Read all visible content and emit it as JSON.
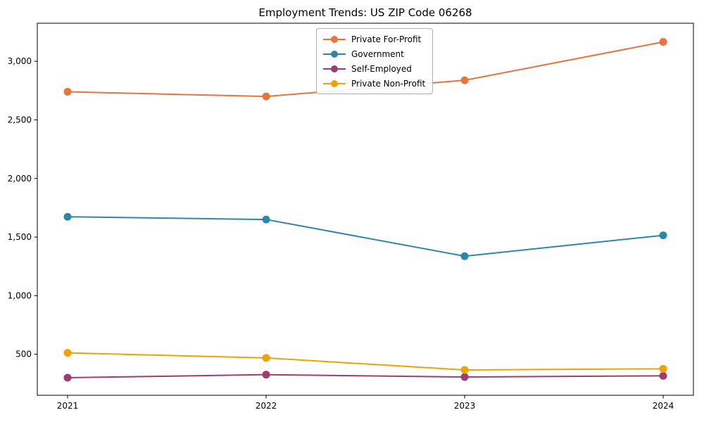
{
  "chart_data": {
    "type": "line",
    "title": "Employment Trends: US ZIP Code 06268",
    "xlabel": "",
    "ylabel": "",
    "categories": [
      "2021",
      "2022",
      "2023",
      "2024"
    ],
    "x": [
      2021,
      2022,
      2023,
      2024
    ],
    "series": [
      {
        "name": "Private For-Profit",
        "color": "#E8743B",
        "values": [
          2740,
          2700,
          2838,
          3165
        ]
      },
      {
        "name": "Government",
        "color": "#2E86AB",
        "values": [
          1673,
          1650,
          1337,
          1515
        ]
      },
      {
        "name": "Self-Employed",
        "color": "#A23B72",
        "values": [
          300,
          326,
          306,
          316
        ]
      },
      {
        "name": "Private Non-Profit",
        "color": "#F0A202",
        "values": [
          512,
          469,
          366,
          376
        ]
      }
    ],
    "yticks": [
      500,
      1000,
      1500,
      2000,
      2500,
      3000
    ],
    "ytick_labels": [
      "500",
      "1,000",
      "1,500",
      "2,000",
      "2,500",
      "3,000"
    ],
    "ylim": [
      150,
      3325
    ],
    "grid": false,
    "legend_position": "upper center",
    "marker": "circle",
    "line_width": 2,
    "marker_radius": 5.5
  }
}
